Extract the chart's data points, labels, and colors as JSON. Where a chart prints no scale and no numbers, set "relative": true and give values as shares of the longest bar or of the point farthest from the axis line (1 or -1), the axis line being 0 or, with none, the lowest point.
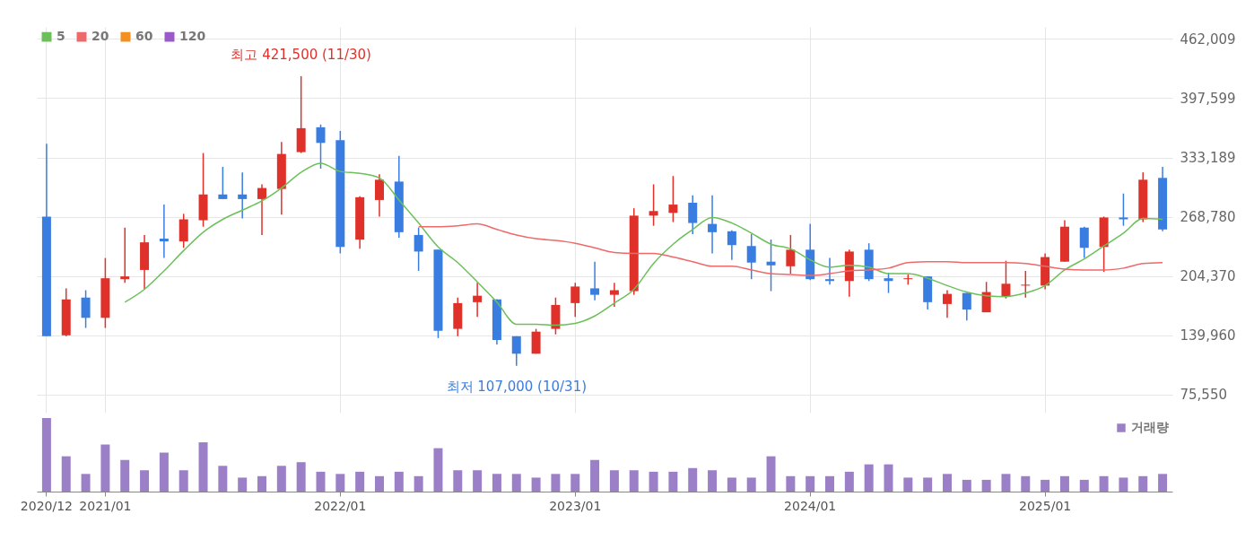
{
  "chart_data": [
    {
      "type": "candlestick",
      "categories": [
        "2020/12",
        null,
        null,
        "2021/01",
        null,
        null,
        null,
        null,
        null,
        null,
        null,
        null,
        null,
        null,
        null,
        "2022/01",
        null,
        null,
        null,
        null,
        null,
        null,
        null,
        null,
        null,
        null,
        null,
        "2023/01",
        null,
        null,
        null,
        null,
        null,
        null,
        null,
        null,
        null,
        null,
        null,
        "2024/01",
        null,
        null,
        null,
        null,
        null,
        null,
        null,
        null,
        null,
        null,
        null,
        "2025/01",
        null,
        null,
        null,
        null,
        null,
        null
      ],
      "ohlc": [
        [
          269000,
          348000,
          139000,
          139000
        ],
        [
          140000,
          191000,
          139000,
          179000
        ],
        [
          181000,
          189000,
          148000,
          159000
        ],
        [
          159000,
          224000,
          148000,
          202000
        ],
        [
          201000,
          257000,
          197000,
          204000
        ],
        [
          211000,
          249000,
          190000,
          241000
        ],
        [
          245000,
          282000,
          224000,
          242000
        ],
        [
          242000,
          272000,
          235000,
          266000
        ],
        [
          265000,
          338000,
          258000,
          293000
        ],
        [
          293000,
          323000,
          288000,
          288000
        ],
        [
          293000,
          317000,
          267000,
          288000
        ],
        [
          288000,
          304000,
          249000,
          300000
        ],
        [
          299000,
          350000,
          271000,
          337000
        ],
        [
          339000,
          421500,
          338000,
          365000
        ],
        [
          366000,
          369000,
          321000,
          349000
        ],
        [
          352000,
          362000,
          229000,
          236000
        ],
        [
          244000,
          291000,
          234000,
          290000
        ],
        [
          287000,
          315000,
          269000,
          309000
        ],
        [
          307000,
          335000,
          246000,
          252000
        ],
        [
          249000,
          257000,
          210000,
          231000
        ],
        [
          233000,
          233000,
          137000,
          145000
        ],
        [
          147000,
          181000,
          139000,
          175000
        ],
        [
          176000,
          197000,
          160000,
          183000
        ],
        [
          179000,
          179000,
          130000,
          135000
        ],
        [
          139000,
          139000,
          107000,
          120000
        ],
        [
          120000,
          147000,
          120000,
          144000
        ],
        [
          147000,
          181000,
          141000,
          173000
        ],
        [
          175000,
          197000,
          160000,
          193000
        ],
        [
          191000,
          220000,
          178000,
          184000
        ],
        [
          184000,
          197000,
          171000,
          189000
        ],
        [
          188000,
          278000,
          184000,
          270000
        ],
        [
          270000,
          304000,
          259000,
          275000
        ],
        [
          273000,
          313000,
          263000,
          282000
        ],
        [
          284000,
          292000,
          250000,
          262000
        ],
        [
          261000,
          292000,
          229000,
          252000
        ],
        [
          253000,
          254000,
          222000,
          238000
        ],
        [
          237000,
          250000,
          201000,
          219000
        ],
        [
          220000,
          244000,
          188000,
          216000
        ],
        [
          215000,
          249000,
          207000,
          233000
        ],
        [
          233000,
          261000,
          200000,
          201000
        ],
        [
          201000,
          224000,
          195000,
          199000
        ],
        [
          199000,
          233000,
          182000,
          231000
        ],
        [
          233000,
          240000,
          199000,
          201000
        ],
        [
          202000,
          208000,
          186000,
          199000
        ],
        [
          201000,
          206000,
          195000,
          202000
        ],
        [
          204000,
          204000,
          168000,
          176000
        ],
        [
          174000,
          189000,
          159000,
          185000
        ],
        [
          186000,
          186000,
          156000,
          168000
        ],
        [
          165000,
          198000,
          165000,
          187000
        ],
        [
          182000,
          221000,
          180000,
          196000
        ],
        [
          194000,
          210000,
          181000,
          195000
        ],
        [
          194000,
          229000,
          190000,
          225000
        ],
        [
          220000,
          265000,
          220000,
          258000
        ],
        [
          257000,
          258000,
          224000,
          235000
        ],
        [
          236000,
          269000,
          209000,
          268000
        ],
        [
          268000,
          294000,
          259000,
          266000
        ],
        [
          266000,
          317000,
          263000,
          309000
        ],
        [
          311000,
          323000,
          253000,
          255000
        ]
      ],
      "colors": [
        "#3a7de0",
        "#e0302a",
        "#3a7de0",
        "#e0302a",
        "#e0302a",
        "#e0302a",
        "#3a7de0",
        "#e0302a",
        "#e0302a",
        "#3a7de0",
        "#3a7de0",
        "#e0302a",
        "#e0302a",
        "#e0302a",
        "#3a7de0",
        "#3a7de0",
        "#e0302a",
        "#e0302a",
        "#3a7de0",
        "#3a7de0",
        "#3a7de0",
        "#e0302a",
        "#e0302a",
        "#3a7de0",
        "#3a7de0",
        "#e0302a",
        "#e0302a",
        "#e0302a",
        "#3a7de0",
        "#e0302a",
        "#e0302a",
        "#e0302a",
        "#e0302a",
        "#3a7de0",
        "#3a7de0",
        "#3a7de0",
        "#3a7de0",
        "#3a7de0",
        "#e0302a",
        "#3a7de0",
        "#3a7de0",
        "#e0302a",
        "#3a7de0",
        "#3a7de0",
        "#e0302a",
        "#3a7de0",
        "#e0302a",
        "#3a7de0",
        "#e0302a",
        "#e0302a",
        "#e0302a",
        "#e0302a",
        "#e0302a",
        "#3a7de0",
        "#e0302a",
        "#3a7de0",
        "#e0302a",
        "#3a7de0"
      ],
      "series": [
        {
          "name": "5",
          "type": "line",
          "color": "#6cc05a",
          "values": [
            null,
            null,
            null,
            null,
            176000,
            190000,
            210000,
            232000,
            252000,
            266000,
            276000,
            286000,
            300000,
            317000,
            327000,
            318000,
            316000,
            311000,
            287000,
            262000,
            236000,
            219000,
            198000,
            176000,
            152000,
            152000,
            151000,
            153000,
            161000,
            175000,
            190000,
            218000,
            239000,
            255000,
            268000,
            262000,
            251000,
            239000,
            234000,
            222000,
            214000,
            216000,
            214000,
            207000,
            207000,
            202000,
            194000,
            187000,
            183000,
            182000,
            186000,
            194000,
            211000,
            223000,
            237000,
            251000,
            267000,
            266000
          ]
        },
        {
          "name": "20",
          "type": "line",
          "color": "#ee6a6a",
          "values": [
            null,
            null,
            null,
            null,
            null,
            null,
            null,
            null,
            null,
            null,
            null,
            null,
            null,
            null,
            null,
            null,
            null,
            null,
            null,
            258000,
            258000,
            259000,
            261000,
            255000,
            249000,
            245000,
            243000,
            240000,
            235000,
            230000,
            229000,
            229000,
            225000,
            220000,
            215000,
            215000,
            211000,
            207000,
            206000,
            205000,
            207000,
            210000,
            211000,
            213000,
            219000,
            220000,
            220000,
            219000,
            219000,
            219000,
            218000,
            215000,
            212000,
            211000,
            211000,
            213000,
            218000,
            219000
          ]
        },
        {
          "name": "60",
          "type": "line",
          "color": "#f39021",
          "values": [
            null,
            null,
            null,
            null,
            null,
            null,
            null,
            null,
            null,
            null,
            null,
            null,
            null,
            null,
            null,
            null,
            null,
            null,
            null,
            null,
            null,
            null,
            null,
            null,
            null,
            null,
            null,
            null,
            null,
            null,
            null,
            null,
            null,
            null,
            null,
            null,
            null,
            null,
            null,
            null,
            null,
            null,
            null,
            null,
            null,
            null,
            null,
            null,
            null,
            null,
            null,
            null,
            null,
            null,
            null,
            null,
            null,
            null
          ]
        },
        {
          "name": "120",
          "type": "line",
          "color": "#9b59c9",
          "values": [
            null,
            null,
            null,
            null,
            null,
            null,
            null,
            null,
            null,
            null,
            null,
            null,
            null,
            null,
            null,
            null,
            null,
            null,
            null,
            null,
            null,
            null,
            null,
            null,
            null,
            null,
            null,
            null,
            null,
            null,
            null,
            null,
            null,
            null,
            null,
            null,
            null,
            null,
            null,
            null,
            null,
            null,
            null,
            null,
            null,
            null,
            null,
            null,
            null,
            null,
            null,
            null,
            null,
            null,
            null,
            null,
            null,
            null
          ]
        }
      ],
      "ylim": [
        56000,
        475000
      ],
      "yticks": [
        {
          "value": 75550,
          "label": "75,550"
        },
        {
          "value": 139960,
          "label": "139,960"
        },
        {
          "value": 204370,
          "label": "204,370"
        },
        {
          "value": 268780,
          "label": "268,780"
        },
        {
          "value": 333189,
          "label": "333,189"
        },
        {
          "value": 397599,
          "label": "397,599"
        },
        {
          "value": 462009,
          "label": "462,009"
        }
      ],
      "annotations": [
        {
          "text": "최고 421,500 (11/30)",
          "y": 421500
        },
        {
          "text": "최저 107,000 (10/31)",
          "y": 107000
        }
      ],
      "grid": true,
      "legend": "top left",
      "tick_labels": "y"
    },
    {
      "type": "bar",
      "relative": true,
      "categories": [
        "2020/12",
        null,
        null,
        "2021/01",
        null,
        null,
        null,
        null,
        null,
        null,
        null,
        null,
        null,
        null,
        null,
        "2022/01",
        null,
        null,
        null,
        null,
        null,
        null,
        null,
        null,
        null,
        null,
        null,
        "2023/01",
        null,
        null,
        null,
        null,
        null,
        null,
        null,
        null,
        null,
        null,
        null,
        "2024/01",
        null,
        null,
        null,
        null,
        null,
        null,
        null,
        null,
        null,
        null,
        null,
        "2025/01",
        null,
        null,
        null,
        null,
        null,
        null
      ],
      "series": [
        {
          "name": "거래량",
          "color": "#9b80c8",
          "values": [
            1,
            0.48,
            0.24,
            0.64,
            0.43,
            0.29,
            0.53,
            0.29,
            0.67,
            0.35,
            0.19,
            0.21,
            0.35,
            0.4,
            0.27,
            0.24,
            0.27,
            0.21,
            0.27,
            0.21,
            0.59,
            0.29,
            0.29,
            0.24,
            0.24,
            0.19,
            0.24,
            0.24,
            0.43,
            0.29,
            0.29,
            0.27,
            0.27,
            0.32,
            0.29,
            0.19,
            0.19,
            0.48,
            0.21,
            0.21,
            0.21,
            0.27,
            0.37,
            0.37,
            0.19,
            0.19,
            0.24,
            0.16,
            0.16,
            0.24,
            0.21,
            0.16,
            0.21,
            0.16,
            0.21,
            0.19,
            0.21,
            0.24
          ]
        }
      ],
      "legend": "top right",
      "tick_labels": "x"
    }
  ]
}
